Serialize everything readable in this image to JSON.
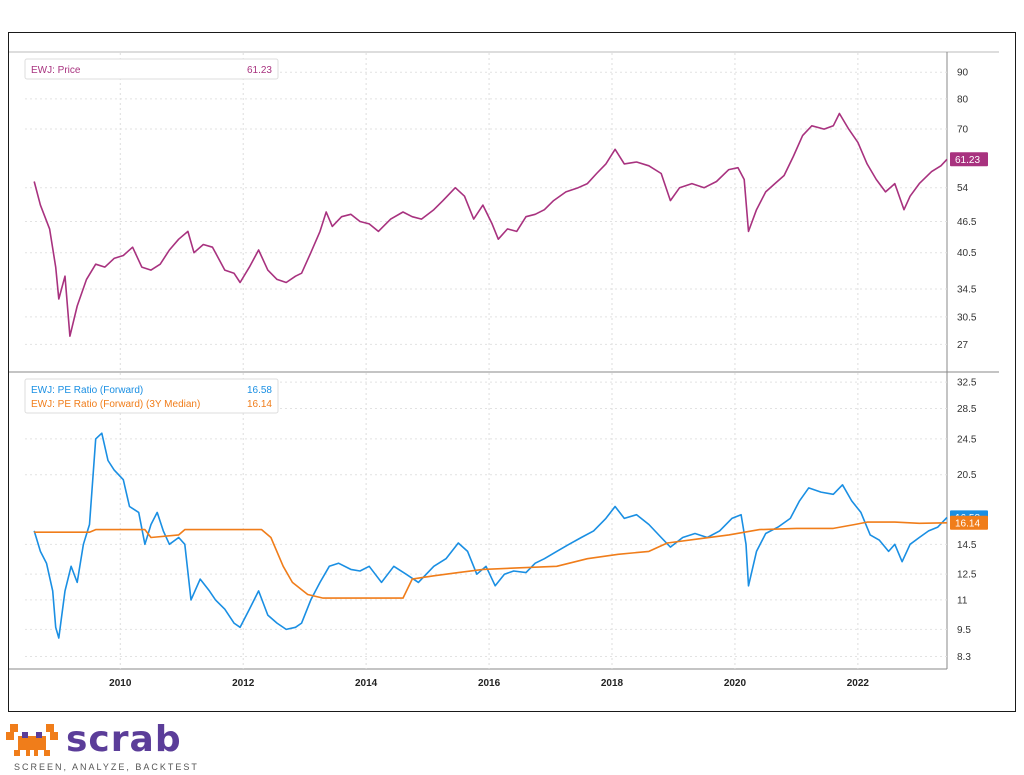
{
  "chart_data": [
    {
      "type": "line",
      "scale": "log",
      "ylim": [
        24,
        98
      ],
      "yticks": [
        90,
        80,
        70,
        61.23,
        54,
        46.5,
        40.5,
        34.5,
        30.5,
        27
      ],
      "grid": true,
      "legend_position": "top-left",
      "series": [
        {
          "name": "EWJ: Price",
          "last_value": "61.23",
          "color": "#a8327f",
          "points": [
            [
              "2008.6",
              55.5
            ],
            [
              "2008.7",
              50
            ],
            [
              "2008.85",
              45
            ],
            [
              "2008.95",
              38
            ],
            [
              "2009.0",
              33
            ],
            [
              "2009.1",
              36.5
            ],
            [
              "2009.18",
              28
            ],
            [
              "2009.3",
              32
            ],
            [
              "2009.45",
              36
            ],
            [
              "2009.6",
              38.5
            ],
            [
              "2009.75",
              38
            ],
            [
              "2009.9",
              39.5
            ],
            [
              "2010.05",
              40
            ],
            [
              "2010.2",
              41.5
            ],
            [
              "2010.35",
              38
            ],
            [
              "2010.5",
              37.5
            ],
            [
              "2010.65",
              38.5
            ],
            [
              "2010.8",
              41
            ],
            [
              "2010.95",
              43
            ],
            [
              "2011.1",
              44.5
            ],
            [
              "2011.2",
              40.5
            ],
            [
              "2011.35",
              42
            ],
            [
              "2011.5",
              41.5
            ],
            [
              "2011.7",
              37.5
            ],
            [
              "2011.85",
              37
            ],
            [
              "2011.95",
              35.5
            ],
            [
              "2012.1",
              38
            ],
            [
              "2012.25",
              41
            ],
            [
              "2012.4",
              37.5
            ],
            [
              "2012.55",
              36
            ],
            [
              "2012.7",
              35.5
            ],
            [
              "2012.85",
              36.5
            ],
            [
              "2012.95",
              37
            ],
            [
              "2013.1",
              40.5
            ],
            [
              "2013.25",
              44.5
            ],
            [
              "2013.35",
              48.5
            ],
            [
              "2013.45",
              45.5
            ],
            [
              "2013.6",
              47.5
            ],
            [
              "2013.75",
              48
            ],
            [
              "2013.9",
              46.5
            ],
            [
              "2014.05",
              46
            ],
            [
              "2014.2",
              44.5
            ],
            [
              "2014.4",
              47
            ],
            [
              "2014.6",
              48.5
            ],
            [
              "2014.75",
              47.5
            ],
            [
              "2014.9",
              47
            ],
            [
              "2015.1",
              49
            ],
            [
              "2015.25",
              51
            ],
            [
              "2015.45",
              54
            ],
            [
              "2015.6",
              52
            ],
            [
              "2015.75",
              47
            ],
            [
              "2015.9",
              50
            ],
            [
              "2016.05",
              46
            ],
            [
              "2016.15",
              43
            ],
            [
              "2016.3",
              45
            ],
            [
              "2016.45",
              44.5
            ],
            [
              "2016.6",
              47.5
            ],
            [
              "2016.75",
              48
            ],
            [
              "2016.9",
              49
            ],
            [
              "2017.05",
              51
            ],
            [
              "2017.25",
              53
            ],
            [
              "2017.45",
              54
            ],
            [
              "2017.6",
              55
            ],
            [
              "2017.75",
              57.5
            ],
            [
              "2017.9",
              60
            ],
            [
              "2018.05",
              64
            ],
            [
              "2018.2",
              60
            ],
            [
              "2018.4",
              60.5
            ],
            [
              "2018.6",
              59.5
            ],
            [
              "2018.8",
              57.5
            ],
            [
              "2018.95",
              51
            ],
            [
              "2019.1",
              54
            ],
            [
              "2019.3",
              55
            ],
            [
              "2019.5",
              54
            ],
            [
              "2019.7",
              55.5
            ],
            [
              "2019.9",
              58.5
            ],
            [
              "2020.05",
              59
            ],
            [
              "2020.15",
              56
            ],
            [
              "2020.22",
              44.5
            ],
            [
              "2020.35",
              49
            ],
            [
              "2020.5",
              53
            ],
            [
              "2020.65",
              55
            ],
            [
              "2020.8",
              57
            ],
            [
              "2020.95",
              62
            ],
            [
              "2021.1",
              68
            ],
            [
              "2021.25",
              71
            ],
            [
              "2021.45",
              70
            ],
            [
              "2021.6",
              71
            ],
            [
              "2021.7",
              75
            ],
            [
              "2021.85",
              70
            ],
            [
              "2022.0",
              66
            ],
            [
              "2022.15",
              60
            ],
            [
              "2022.3",
              56
            ],
            [
              "2022.45",
              53
            ],
            [
              "2022.6",
              55
            ],
            [
              "2022.75",
              49
            ],
            [
              "2022.85",
              52
            ],
            [
              "2023.0",
              55
            ],
            [
              "2023.2",
              58
            ],
            [
              "2023.35",
              59.5
            ],
            [
              "2023.45",
              61.23
            ]
          ]
        }
      ]
    },
    {
      "type": "line",
      "scale": "log",
      "ylim": [
        7.8,
        34
      ],
      "yticks": [
        32.5,
        28.5,
        24.5,
        20.5,
        16.58,
        16.14,
        14.5,
        12.5,
        11,
        9.5,
        8.3
      ],
      "grid": true,
      "legend_position": "top-left",
      "x_ticks": [
        "2010",
        "2012",
        "2014",
        "2016",
        "2018",
        "2020",
        "2022"
      ],
      "xlim": [
        2008.45,
        2023.45
      ],
      "series": [
        {
          "name": "EWJ: PE Ratio (Forward)",
          "last_value": "16.58",
          "color": "#1a8fe3",
          "points": [
            [
              "2008.6",
              15.5
            ],
            [
              "2008.7",
              14
            ],
            [
              "2008.8",
              13.2
            ],
            [
              "2008.9",
              11.5
            ],
            [
              "2008.95",
              9.6
            ],
            [
              "2009.0",
              9.1
            ],
            [
              "2009.1",
              11.5
            ],
            [
              "2009.2",
              13
            ],
            [
              "2009.3",
              12
            ],
            [
              "2009.4",
              14.5
            ],
            [
              "2009.5",
              16
            ],
            [
              "2009.6",
              24.5
            ],
            [
              "2009.7",
              25.2
            ],
            [
              "2009.8",
              22
            ],
            [
              "2009.9",
              21
            ],
            [
              "2010.05",
              20
            ],
            [
              "2010.15",
              17.5
            ],
            [
              "2010.3",
              17
            ],
            [
              "2010.4",
              14.5
            ],
            [
              "2010.5",
              16
            ],
            [
              "2010.6",
              17
            ],
            [
              "2010.7",
              15.5
            ],
            [
              "2010.8",
              14.5
            ],
            [
              "2010.95",
              15
            ],
            [
              "2011.05",
              14.5
            ],
            [
              "2011.15",
              11
            ],
            [
              "2011.3",
              12.2
            ],
            [
              "2011.45",
              11.5
            ],
            [
              "2011.55",
              11
            ],
            [
              "2011.7",
              10.5
            ],
            [
              "2011.85",
              9.8
            ],
            [
              "2011.95",
              9.6
            ],
            [
              "2012.1",
              10.5
            ],
            [
              "2012.25",
              11.5
            ],
            [
              "2012.4",
              10.2
            ],
            [
              "2012.55",
              9.8
            ],
            [
              "2012.7",
              9.5
            ],
            [
              "2012.85",
              9.6
            ],
            [
              "2012.95",
              9.8
            ],
            [
              "2013.1",
              11
            ],
            [
              "2013.25",
              12
            ],
            [
              "2013.4",
              13
            ],
            [
              "2013.55",
              13.2
            ],
            [
              "2013.75",
              12.8
            ],
            [
              "2013.9",
              12.7
            ],
            [
              "2014.05",
              13
            ],
            [
              "2014.25",
              12
            ],
            [
              "2014.45",
              13
            ],
            [
              "2014.65",
              12.5
            ],
            [
              "2014.85",
              12
            ],
            [
              "2015.1",
              13
            ],
            [
              "2015.3",
              13.5
            ],
            [
              "2015.5",
              14.6
            ],
            [
              "2015.65",
              14
            ],
            [
              "2015.8",
              12.5
            ],
            [
              "2015.95",
              13
            ],
            [
              "2016.1",
              11.8
            ],
            [
              "2016.25",
              12.5
            ],
            [
              "2016.4",
              12.7
            ],
            [
              "2016.6",
              12.6
            ],
            [
              "2016.75",
              13.2
            ],
            [
              "2016.9",
              13.5
            ],
            [
              "2017.1",
              14
            ],
            [
              "2017.3",
              14.5
            ],
            [
              "2017.5",
              15
            ],
            [
              "2017.7",
              15.5
            ],
            [
              "2017.9",
              16.5
            ],
            [
              "2018.05",
              17.5
            ],
            [
              "2018.2",
              16.5
            ],
            [
              "2018.4",
              16.8
            ],
            [
              "2018.6",
              16
            ],
            [
              "2018.8",
              15
            ],
            [
              "2018.95",
              14.3
            ],
            [
              "2019.15",
              15
            ],
            [
              "2019.35",
              15.3
            ],
            [
              "2019.55",
              15
            ],
            [
              "2019.75",
              15.5
            ],
            [
              "2019.95",
              16.5
            ],
            [
              "2020.1",
              16.8
            ],
            [
              "2020.18",
              14.5
            ],
            [
              "2020.22",
              11.8
            ],
            [
              "2020.35",
              14
            ],
            [
              "2020.5",
              15.3
            ],
            [
              "2020.7",
              15.8
            ],
            [
              "2020.9",
              16.5
            ],
            [
              "2021.05",
              18
            ],
            [
              "2021.2",
              19.2
            ],
            [
              "2021.4",
              18.8
            ],
            [
              "2021.6",
              18.6
            ],
            [
              "2021.75",
              19.5
            ],
            [
              "2021.9",
              18
            ],
            [
              "2022.05",
              17
            ],
            [
              "2022.2",
              15.2
            ],
            [
              "2022.35",
              14.8
            ],
            [
              "2022.5",
              14
            ],
            [
              "2022.6",
              14.5
            ],
            [
              "2022.72",
              13.3
            ],
            [
              "2022.85",
              14.5
            ],
            [
              "2023.0",
              15
            ],
            [
              "2023.15",
              15.5
            ],
            [
              "2023.3",
              15.8
            ],
            [
              "2023.45",
              16.58
            ]
          ]
        },
        {
          "name": "EWJ: PE Ratio (Forward) (3Y Median)",
          "last_value": "16.14",
          "color": "#f07d1a",
          "points": [
            [
              "2008.6",
              15.4
            ],
            [
              "2009.5",
              15.4
            ],
            [
              "2009.6",
              15.6
            ],
            [
              "2010.4",
              15.6
            ],
            [
              "2010.5",
              15
            ],
            [
              "2010.95",
              15.2
            ],
            [
              "2011.05",
              15.6
            ],
            [
              "2012.3",
              15.6
            ],
            [
              "2012.45",
              15
            ],
            [
              "2012.65",
              13
            ],
            [
              "2012.8",
              12
            ],
            [
              "2013.05",
              11.3
            ],
            [
              "2013.3",
              11.1
            ],
            [
              "2014.1",
              11.1
            ],
            [
              "2014.6",
              11.1
            ],
            [
              "2014.75",
              12.2
            ],
            [
              "2015.1",
              12.4
            ],
            [
              "2015.5",
              12.6
            ],
            [
              "2015.9",
              12.8
            ],
            [
              "2016.5",
              12.9
            ],
            [
              "2017.1",
              13
            ],
            [
              "2017.6",
              13.5
            ],
            [
              "2018.1",
              13.8
            ],
            [
              "2018.6",
              14
            ],
            [
              "2018.9",
              14.6
            ],
            [
              "2019.4",
              14.9
            ],
            [
              "2019.9",
              15.2
            ],
            [
              "2020.4",
              15.6
            ],
            [
              "2021.0",
              15.7
            ],
            [
              "2021.6",
              15.7
            ],
            [
              "2021.95",
              16
            ],
            [
              "2022.15",
              16.2
            ],
            [
              "2022.6",
              16.2
            ],
            [
              "2023.0",
              16.1
            ],
            [
              "2023.45",
              16.14
            ]
          ]
        }
      ]
    }
  ],
  "logo": {
    "word": "scrab",
    "tagline": "SCREEN, ANALYZE, BACKTEST",
    "colors": {
      "purple": "#5b3d99",
      "orange": "#f07d1a"
    }
  }
}
